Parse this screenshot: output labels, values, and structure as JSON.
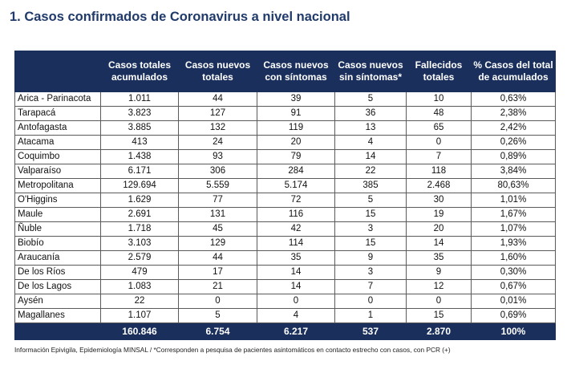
{
  "title": "1. Casos confirmados de Coronavirus a nivel nacional",
  "columns": [
    "",
    "Casos totales acumulados",
    "Casos nuevos totales",
    "Casos nuevos con síntomas",
    "Casos nuevos sin síntomas*",
    "Fallecidos totales",
    "% Casos del total de acumulados"
  ],
  "rows": [
    [
      "Arica - Parinacota",
      "1.011",
      "44",
      "39",
      "5",
      "10",
      "0,63%"
    ],
    [
      "Tarapacá",
      "3.823",
      "127",
      "91",
      "36",
      "48",
      "2,38%"
    ],
    [
      "Antofagasta",
      "3.885",
      "132",
      "119",
      "13",
      "65",
      "2,42%"
    ],
    [
      "Atacama",
      "413",
      "24",
      "20",
      "4",
      "0",
      "0,26%"
    ],
    [
      "Coquimbo",
      "1.438",
      "93",
      "79",
      "14",
      "7",
      "0,89%"
    ],
    [
      "Valparaíso",
      "6.171",
      "306",
      "284",
      "22",
      "118",
      "3,84%"
    ],
    [
      "Metropolitana",
      "129.694",
      "5.559",
      "5.174",
      "385",
      "2.468",
      "80,63%"
    ],
    [
      "O'Higgins",
      "1.629",
      "77",
      "72",
      "5",
      "30",
      "1,01%"
    ],
    [
      "Maule",
      "2.691",
      "131",
      "116",
      "15",
      "19",
      "1,67%"
    ],
    [
      "Ñuble",
      "1.718",
      "45",
      "42",
      "3",
      "20",
      "1,07%"
    ],
    [
      "Biobío",
      "3.103",
      "129",
      "114",
      "15",
      "14",
      "1,93%"
    ],
    [
      "Araucanía",
      "2.579",
      "44",
      "35",
      "9",
      "35",
      "1,60%"
    ],
    [
      "De los Ríos",
      "479",
      "17",
      "14",
      "3",
      "9",
      "0,30%"
    ],
    [
      "De los Lagos",
      "1.083",
      "21",
      "14",
      "7",
      "12",
      "0,67%"
    ],
    [
      "Aysén",
      "22",
      "0",
      "0",
      "0",
      "0",
      "0,01%"
    ],
    [
      "Magallanes",
      "1.107",
      "5",
      "4",
      "1",
      "15",
      "0,69%"
    ]
  ],
  "totals": [
    "",
    "160.846",
    "6.754",
    "6.217",
    "537",
    "2.870",
    "100%"
  ],
  "footnote": "Información Epivigila, Epidemiología MINSAL / *Corresponden a pesquisa de pacientes asintomáticos en contacto estrecho con casos, con PCR (+)",
  "colors": {
    "header_bg": "#1a2f5c",
    "title": "#1f3a6b"
  }
}
